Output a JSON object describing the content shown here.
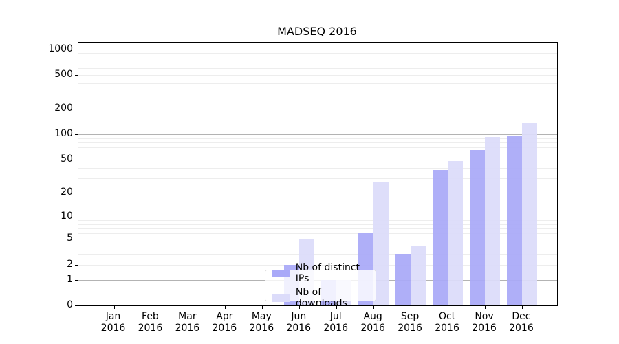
{
  "title": "MADSEQ 2016",
  "legend": {
    "items": [
      {
        "label": "Nb of distinct IPs",
        "color": "#a9a9f8"
      },
      {
        "label": "Nb of downloads",
        "color": "#dcdcfa"
      }
    ]
  },
  "chart_data": {
    "type": "bar",
    "title": "MADSEQ 2016",
    "categories": [
      "Jan",
      "Feb",
      "Mar",
      "Apr",
      "May",
      "Jun",
      "Jul",
      "Aug",
      "Sep",
      "Oct",
      "Nov",
      "Dec"
    ],
    "year_label": "2016",
    "series": [
      {
        "name": "Nb of distinct IPs",
        "color": "#a9a9f8",
        "values": [
          0,
          0,
          0,
          0,
          0,
          2,
          1,
          6,
          3,
          38,
          65,
          96
        ]
      },
      {
        "name": "Nb of downloads",
        "color": "#dcdcfa",
        "values": [
          0,
          0,
          0,
          0,
          0,
          5,
          1,
          27,
          4,
          48,
          94,
          135
        ]
      }
    ],
    "xlabel": "",
    "ylabel": "",
    "yscale": "log10(1+value), zero at baseline",
    "yticks": [
      0,
      1,
      2,
      5,
      10,
      20,
      50,
      100,
      200,
      500,
      1000
    ],
    "ylim": [
      0,
      1200
    ],
    "grid": "minor light gray lines at 2-9,20-90,200-900; major gray lines at 1,10,100,1000",
    "legend_position": "lower center"
  }
}
